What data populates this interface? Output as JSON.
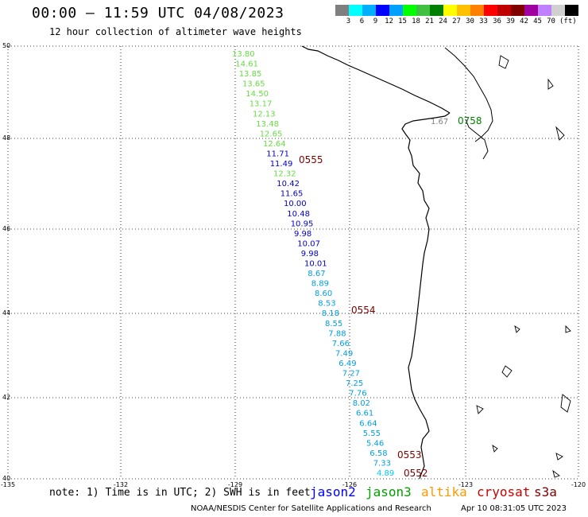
{
  "header": {
    "title": "00:00 — 11:59 UTC 04/08/2023",
    "subtitle": "12 hour collection of altimeter wave heights"
  },
  "colorbar": {
    "colors": [
      "#7f7f7f",
      "#00ffff",
      "#00b0ff",
      "#0000ff",
      "#00a0ff",
      "#00ff00",
      "#40c040",
      "#008000",
      "#ffff00",
      "#ffc000",
      "#ff8000",
      "#ff0000",
      "#c00000",
      "#800000",
      "#a000a0",
      "#c080ff",
      "#d0d0d0",
      "#000000"
    ],
    "labels": [
      "3",
      "6",
      "9",
      "12",
      "15",
      "18",
      "21",
      "24",
      "27",
      "30",
      "33",
      "36",
      "39",
      "42",
      "45",
      "70"
    ],
    "unit": "(ft)"
  },
  "axes": {
    "lat_labels": [
      "50",
      "48",
      "46",
      "44",
      "42",
      "40"
    ],
    "lon_labels": [
      "-135",
      "-132",
      "-129",
      "-126",
      "-123",
      "-120"
    ]
  },
  "track": {
    "values": [
      {
        "v": "13.80",
        "c": "#66dd44"
      },
      {
        "v": "14.61",
        "c": "#66dd44"
      },
      {
        "v": "13.85",
        "c": "#66dd44"
      },
      {
        "v": "13.65",
        "c": "#66dd44"
      },
      {
        "v": "14.50",
        "c": "#66dd44"
      },
      {
        "v": "13.17",
        "c": "#66dd44"
      },
      {
        "v": "12.13",
        "c": "#66dd44"
      },
      {
        "v": "13.48",
        "c": "#66dd44"
      },
      {
        "v": "12.65",
        "c": "#66dd44"
      },
      {
        "v": "12.64",
        "c": "#66dd44"
      },
      {
        "v": "11.71",
        "c": "#0000cc"
      },
      {
        "v": "11.49",
        "c": "#0000cc"
      },
      {
        "v": "12.32",
        "c": "#66dd44"
      },
      {
        "v": "10.42",
        "c": "#0000cc"
      },
      {
        "v": "11.65",
        "c": "#0000cc"
      },
      {
        "v": "10.00",
        "c": "#0000cc"
      },
      {
        "v": "10.48",
        "c": "#0000cc"
      },
      {
        "v": "10.95",
        "c": "#0000cc"
      },
      {
        "v": "9.98",
        "c": "#0000cc"
      },
      {
        "v": "10.07",
        "c": "#0000cc"
      },
      {
        "v": "9.98",
        "c": "#0000cc"
      },
      {
        "v": "10.01",
        "c": "#0000cc"
      },
      {
        "v": "8.67",
        "c": "#00a0e0"
      },
      {
        "v": "8.89",
        "c": "#00a0e0"
      },
      {
        "v": "8.60",
        "c": "#00a0e0"
      },
      {
        "v": "8.53",
        "c": "#00a0e0"
      },
      {
        "v": "8.18",
        "c": "#00a0e0"
      },
      {
        "v": "8.55",
        "c": "#00a0e0"
      },
      {
        "v": "7.88",
        "c": "#00a0e0"
      },
      {
        "v": "7.66",
        "c": "#00a0e0"
      },
      {
        "v": "7.49",
        "c": "#00a0e0"
      },
      {
        "v": "6.49",
        "c": "#00a0e0"
      },
      {
        "v": "7.27",
        "c": "#00a0e0"
      },
      {
        "v": "7.25",
        "c": "#00a0e0"
      },
      {
        "v": "7.76",
        "c": "#00a0e0"
      },
      {
        "v": "8.02",
        "c": "#00a0e0"
      },
      {
        "v": "6.61",
        "c": "#00a0e0"
      },
      {
        "v": "6.64",
        "c": "#00a0e0"
      },
      {
        "v": "5.55",
        "c": "#00a0e0"
      },
      {
        "v": "5.46",
        "c": "#00a0e0"
      },
      {
        "v": "6.58",
        "c": "#00a0e0"
      },
      {
        "v": "7.33",
        "c": "#00a0e0"
      },
      {
        "v": "4.89",
        "c": "#00c8ff"
      }
    ],
    "time_tags": [
      "0555",
      "0554",
      "0553",
      "0552"
    ],
    "time_tag_color": "#800000",
    "inland_labels": [
      {
        "v": "1.67",
        "c": "#808080"
      },
      {
        "v": "0758",
        "c": "#008000"
      }
    ]
  },
  "footer": {
    "note": "note: 1) Time is in UTC; 2) SWH is in feet",
    "satellites": [
      {
        "name": "jason2",
        "color": "#0000ff"
      },
      {
        "name": "jason3",
        "color": "#00a000"
      },
      {
        "name": "altika",
        "color": "#ff9900"
      },
      {
        "name": "cryosat",
        "color": "#cc0000"
      },
      {
        "name": "s3a",
        "color": "#800000"
      }
    ],
    "credit": "NOAA/NESDIS Center for Satellite Applications and Research",
    "timestamp": "Apr 10 08:31:05 UTC 2023"
  }
}
